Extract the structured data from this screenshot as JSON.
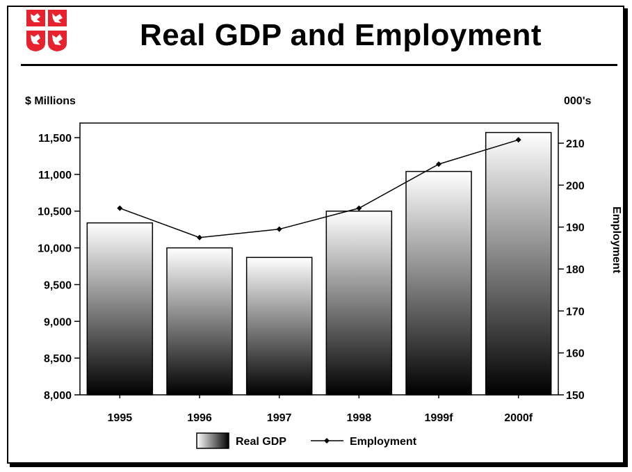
{
  "title": "Real GDP and Employment",
  "logo_icon": "coat-of-arms-icon",
  "chart_data": {
    "type": "bar",
    "categories": [
      "1995",
      "1996",
      "1997",
      "1998",
      "1999f",
      "2000f"
    ],
    "series": [
      {
        "name": "Real GDP",
        "type": "bar",
        "axis": "left",
        "values": [
          10340,
          10000,
          9870,
          10500,
          11040,
          11570
        ]
      },
      {
        "name": "Employment",
        "type": "line",
        "axis": "right",
        "values": [
          194.5,
          187.5,
          189.5,
          194.5,
          205,
          210.8
        ]
      }
    ],
    "left_axis": {
      "label": "$ Millions",
      "min": 8000,
      "max": 11500,
      "ticks": [
        8000,
        8500,
        9000,
        9500,
        10000,
        10500,
        11000,
        11500
      ],
      "tick_labels": [
        "8,000",
        "8,500",
        "9,000",
        "9,500",
        "10,000",
        "10,500",
        "11,000",
        "11,500"
      ]
    },
    "right_axis": {
      "label": "000's",
      "title": "Employment",
      "min": 150,
      "max": 210,
      "ticks": [
        150,
        160,
        170,
        180,
        190,
        200,
        210
      ],
      "tick_labels": [
        "150",
        "160",
        "170",
        "180",
        "190",
        "200",
        "210"
      ]
    },
    "legend": {
      "placement": "bottom",
      "entries": [
        "Real GDP",
        "Employment"
      ]
    },
    "grid": false,
    "colors": {
      "bar_top": "#ffffff",
      "bar_bottom": "#000000",
      "line": "#000000",
      "logo_red": "#e8212e"
    }
  }
}
